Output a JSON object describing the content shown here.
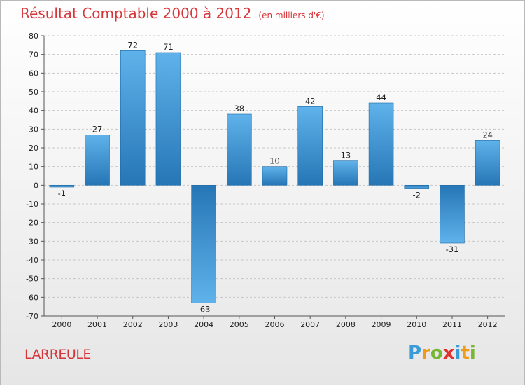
{
  "chart_data": {
    "type": "bar",
    "title": "Résultat Comptable 2000 à 2012",
    "subtitle": "(en milliers d'€)",
    "categories": [
      "2000",
      "2001",
      "2002",
      "2003",
      "2004",
      "2005",
      "2006",
      "2007",
      "2008",
      "2009",
      "2010",
      "2011",
      "2012"
    ],
    "values": [
      -1,
      27,
      72,
      71,
      -63,
      38,
      10,
      42,
      13,
      44,
      -2,
      -31,
      24
    ],
    "ylim": [
      -70,
      80
    ],
    "yticks": [
      80,
      70,
      60,
      50,
      40,
      30,
      20,
      10,
      0,
      -10,
      -20,
      -30,
      -40,
      -50,
      -60,
      -70
    ],
    "xlabel": "",
    "ylabel": "",
    "grid": true
  },
  "commune": "LARREULE",
  "logo": {
    "letters": [
      "P",
      "r",
      "o",
      "x",
      "i",
      "t",
      "i"
    ],
    "colors": [
      "#3a9bd9",
      "#f09a1c",
      "#78b533",
      "#e2312d",
      "#3a9bd9",
      "#f09a1c",
      "#78b533"
    ]
  },
  "colors": {
    "title": "#d6363a",
    "bar_dark": "#2676b6",
    "bar_light": "#5fb2ea",
    "grid": "#c8c8c8"
  }
}
